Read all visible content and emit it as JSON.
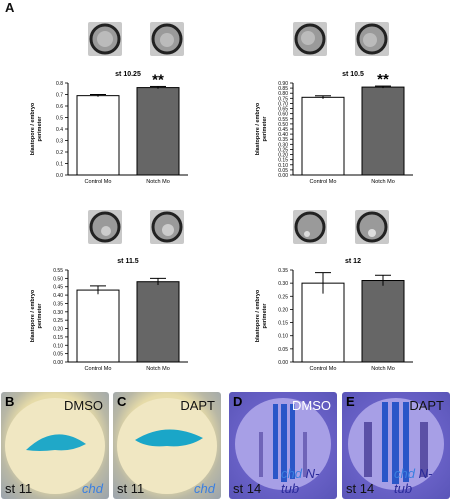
{
  "panel_letter": "A",
  "chart_data": [
    {
      "type": "bar",
      "title": "st 10.25",
      "ylabel": "blastopore / embryo perimeter",
      "categories": [
        "Control Mo",
        "Notch Mo"
      ],
      "values": [
        0.69,
        0.76
      ],
      "errors": [
        0.01,
        0.01
      ],
      "ylim": [
        0,
        0.8
      ],
      "yticks": [
        "0.0",
        "0.1",
        "0.2",
        "0.3",
        "0.4",
        "0.5",
        "0.6",
        "0.7",
        "0.8"
      ],
      "significance": "**",
      "bar_colors": [
        "#ffffff",
        "#666666"
      ]
    },
    {
      "type": "bar",
      "title": "st 10.5",
      "ylabel": "blastopore / embryo perimeter",
      "categories": [
        "Control Mo",
        "Notch Mo"
      ],
      "values": [
        0.76,
        0.86
      ],
      "errors": [
        0.015,
        0.01
      ],
      "ylim": [
        0,
        0.9
      ],
      "yticks": [
        "0.00",
        "0.05",
        "0.10",
        "0.15",
        "0.20",
        "0.25",
        "0.30",
        "0.35",
        "0.40",
        "0.45",
        "0.50",
        "0.55",
        "0.60",
        "0.65",
        "0.70",
        "0.75",
        "0.80",
        "0.85",
        "0.90"
      ],
      "significance": "**",
      "bar_colors": [
        "#ffffff",
        "#666666"
      ]
    },
    {
      "type": "bar",
      "title": "st 11.5",
      "ylabel": "blastopore / embryo perimeter",
      "categories": [
        "Control Mo",
        "Notch Mo"
      ],
      "values": [
        0.43,
        0.48
      ],
      "errors": [
        0.025,
        0.02
      ],
      "ylim": [
        0,
        0.55
      ],
      "yticks": [
        "0.00",
        "0.05",
        "0.10",
        "0.15",
        "0.20",
        "0.25",
        "0.30",
        "0.35",
        "0.40",
        "0.45",
        "0.50",
        "0.55"
      ],
      "significance": "",
      "bar_colors": [
        "#ffffff",
        "#666666"
      ]
    },
    {
      "type": "bar",
      "title": "st 12",
      "ylabel": "blastopore / embryo perimeter",
      "categories": [
        "Control Mo",
        "Notch Mo"
      ],
      "values": [
        0.3,
        0.31
      ],
      "errors": [
        0.04,
        0.02
      ],
      "ylim": [
        0,
        0.35
      ],
      "yticks": [
        "0.00",
        "0.05",
        "0.10",
        "0.15",
        "0.20",
        "0.25",
        "0.30",
        "0.35"
      ],
      "significance": "",
      "bar_colors": [
        "#ffffff",
        "#666666"
      ]
    }
  ],
  "photos": [
    {
      "letter": "B",
      "treatment": "DMSO",
      "stage": "st 11",
      "probe": "chd",
      "probe2": ""
    },
    {
      "letter": "C",
      "treatment": "DAPT",
      "stage": "st 11",
      "probe": "chd",
      "probe2": ""
    },
    {
      "letter": "D",
      "treatment": "DMSO",
      "stage": "st 14",
      "probe": "chd",
      "probe2": "N-tub"
    },
    {
      "letter": "E",
      "treatment": "DAPT",
      "stage": "st 14",
      "probe": "chd",
      "probe2": "N-tub"
    }
  ]
}
